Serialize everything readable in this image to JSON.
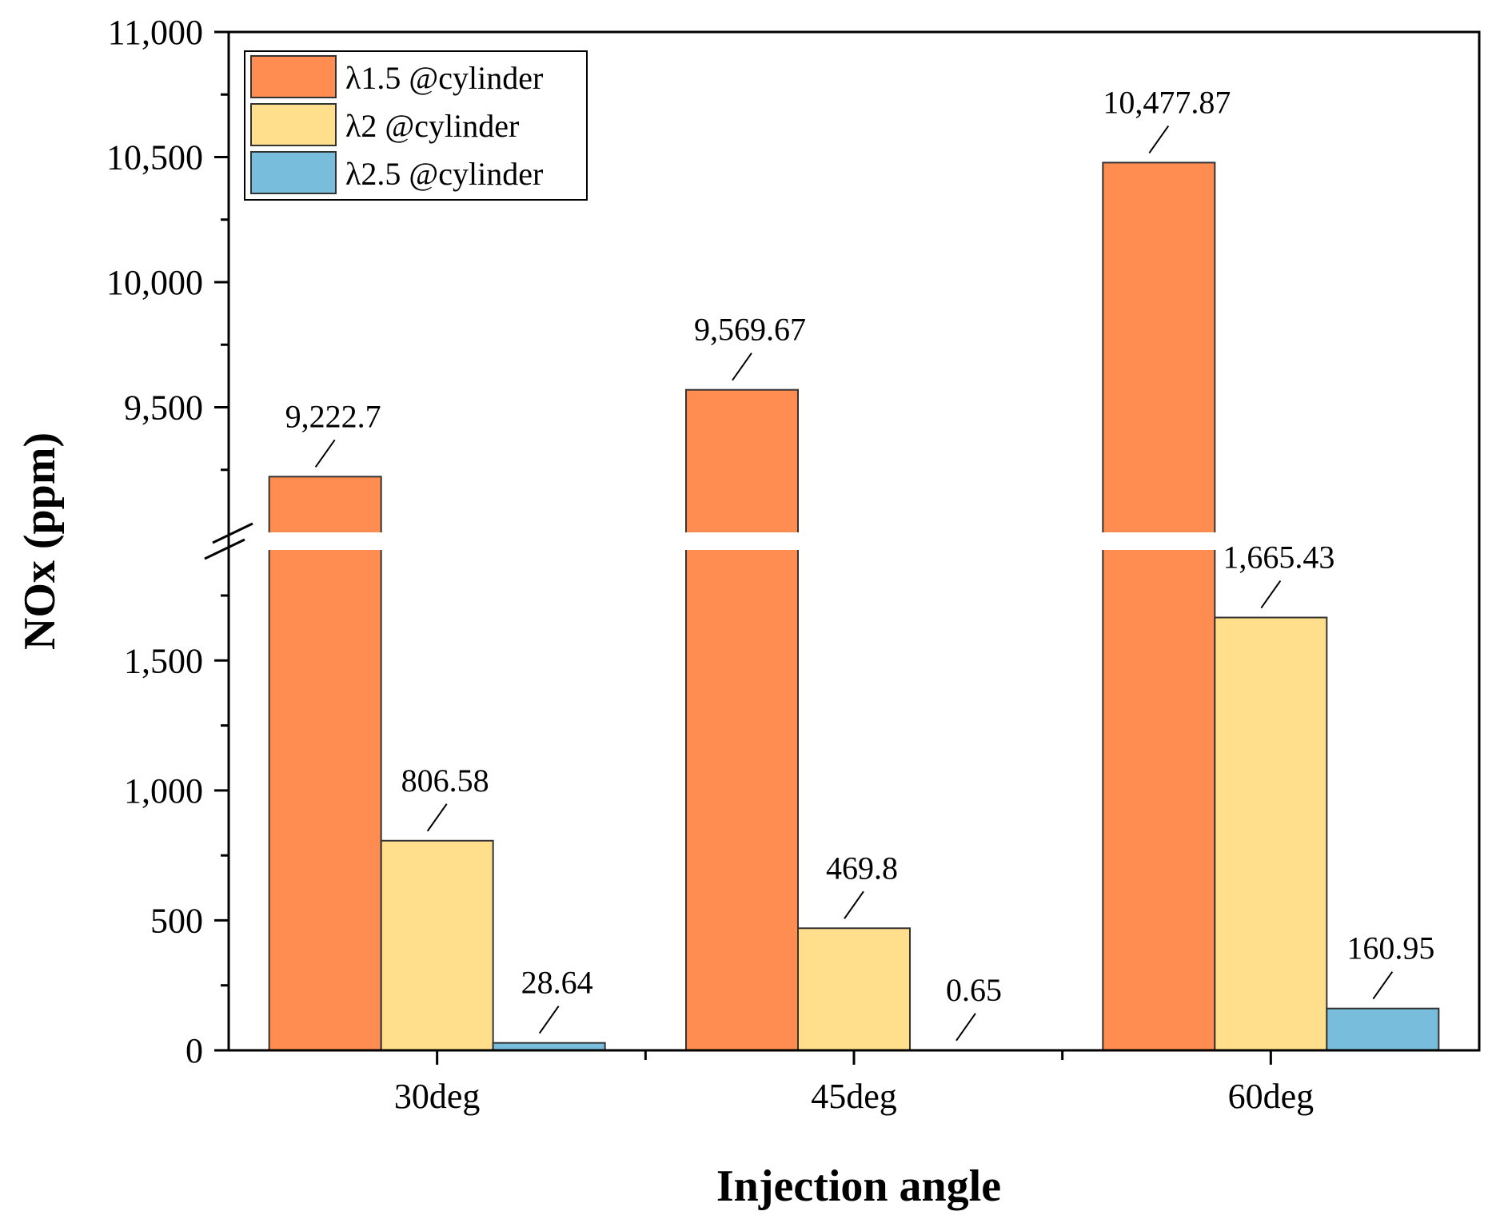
{
  "chart_data": {
    "type": "bar",
    "title": "",
    "xlabel": "Injection angle",
    "ylabel": "NOx (ppm)",
    "categories": [
      "30deg",
      "45deg",
      "60deg"
    ],
    "series": [
      {
        "name": "λ1.5 @cylinder",
        "color": "#FF8C50",
        "values": [
          9222.7,
          9569.67,
          10477.87
        ],
        "labels": [
          "9,222.7",
          "9,569.67",
          "10,477.87"
        ]
      },
      {
        "name": "λ2 @cylinder",
        "color": "#FFDF8C",
        "values": [
          806.58,
          469.8,
          1665.43
        ],
        "labels": [
          "806.58",
          "469.8",
          "1,665.43"
        ]
      },
      {
        "name": "λ2.5 @cylinder",
        "color": "#78BEDC",
        "values": [
          28.64,
          0.65,
          160.95
        ],
        "labels": [
          "28.64",
          "0.65",
          "160.95"
        ]
      }
    ],
    "y_axis_break": true,
    "lower_segment": {
      "range": [
        0,
        1950
      ],
      "ticks": [
        0,
        500,
        1000,
        1500
      ],
      "tick_labels": [
        "0",
        "500",
        "1,000",
        "1,500"
      ]
    },
    "upper_segment": {
      "range": [
        9000,
        11000
      ],
      "ticks": [
        9500,
        10000,
        10500,
        11000
      ],
      "tick_labels": [
        "9,500",
        "10,000",
        "10,500",
        "11,000"
      ]
    },
    "legend_position": "top-left",
    "grid": false
  }
}
